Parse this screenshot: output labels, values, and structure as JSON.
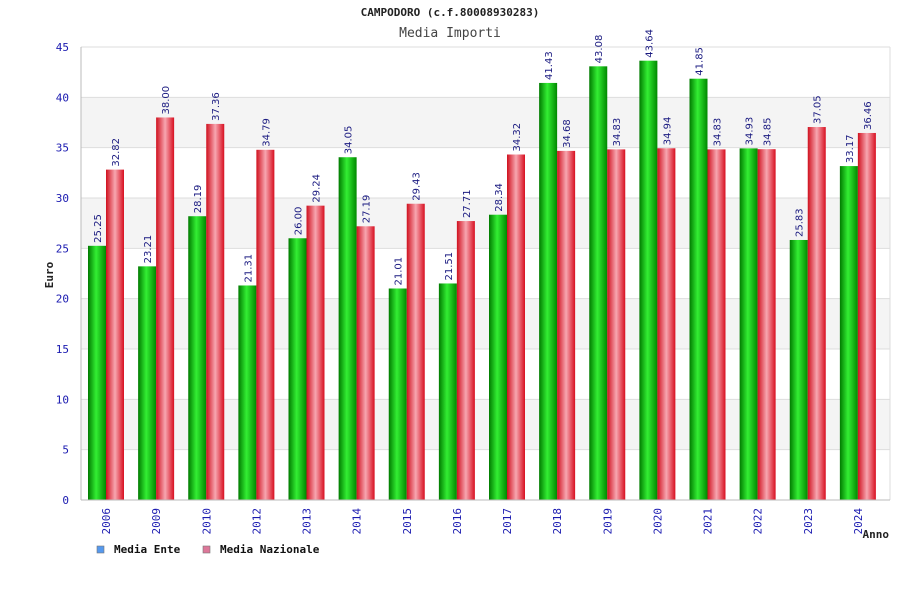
{
  "chart_data": {
    "type": "bar",
    "title": "CAMPODORO (c.f.80008930283)",
    "subtitle": "Media Importi",
    "xlabel": "Anno",
    "ylabel": "Euro",
    "ylim": [
      0,
      45
    ],
    "yticks": [
      0,
      5,
      10,
      15,
      20,
      25,
      30,
      35,
      40,
      45
    ],
    "grid": true,
    "legend_position": "bottom-left",
    "categories": [
      "2006",
      "2009",
      "2010",
      "2012",
      "2013",
      "2014",
      "2015",
      "2016",
      "2017",
      "2018",
      "2019",
      "2020",
      "2021",
      "2022",
      "2023",
      "2024"
    ],
    "series": [
      {
        "name": "Media Ente",
        "color": "#00c000",
        "legend_color": "#5599ee",
        "values": [
          25.25,
          23.21,
          28.19,
          21.31,
          26.0,
          34.05,
          21.01,
          21.51,
          28.34,
          41.43,
          43.08,
          43.64,
          41.85,
          34.93,
          25.83,
          33.17
        ],
        "labels": [
          "25.25",
          "23.21",
          "28.19",
          "21.31",
          "26.00",
          "34.05",
          "21.01",
          "21.51",
          "28.34",
          "41.43",
          "43.08",
          "43.64",
          "41.85",
          "34.93",
          "25.83",
          "33.17"
        ]
      },
      {
        "name": "Media Nazionale",
        "color": "#e02030",
        "legend_color": "#dd7799",
        "values": [
          32.82,
          38.0,
          37.36,
          34.79,
          29.24,
          27.19,
          29.43,
          27.71,
          34.32,
          34.68,
          34.83,
          34.94,
          34.83,
          34.85,
          37.05,
          36.46
        ],
        "labels": [
          "32.82",
          "38.00",
          "37.36",
          "34.79",
          "29.24",
          "27.19",
          "29.43",
          "27.71",
          "34.32",
          "34.68",
          "34.83",
          "34.94",
          "34.83",
          "34.85",
          "37.05",
          "36.46"
        ]
      }
    ]
  }
}
